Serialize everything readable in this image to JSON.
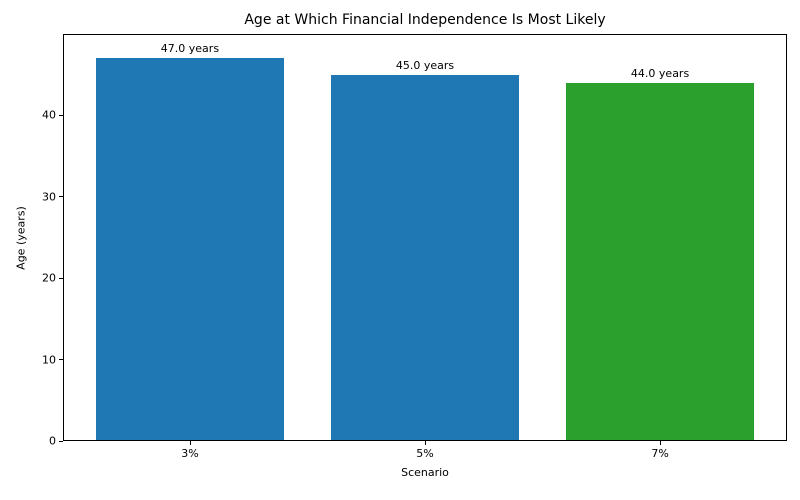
{
  "figure": {
    "background": "#ffffff",
    "text_color": "#000000",
    "axis_color": "#000000"
  },
  "chart_data": {
    "type": "bar",
    "title": "Age at Which Financial Independence Is Most Likely",
    "xlabel": "Scenario",
    "ylabel": "Age (years)",
    "categories": [
      "3%",
      "5%",
      "7%"
    ],
    "values": [
      47.0,
      45.0,
      44.0
    ],
    "bar_labels": [
      "47.0 years",
      "45.0 years",
      "44.0 years"
    ],
    "bar_colors": [
      "#1f77b4",
      "#1f77b4",
      "#2ca02c"
    ],
    "yticks": [
      0,
      10,
      20,
      30,
      40
    ],
    "ylim": [
      0,
      50
    ],
    "grid": false,
    "legend": "none"
  }
}
